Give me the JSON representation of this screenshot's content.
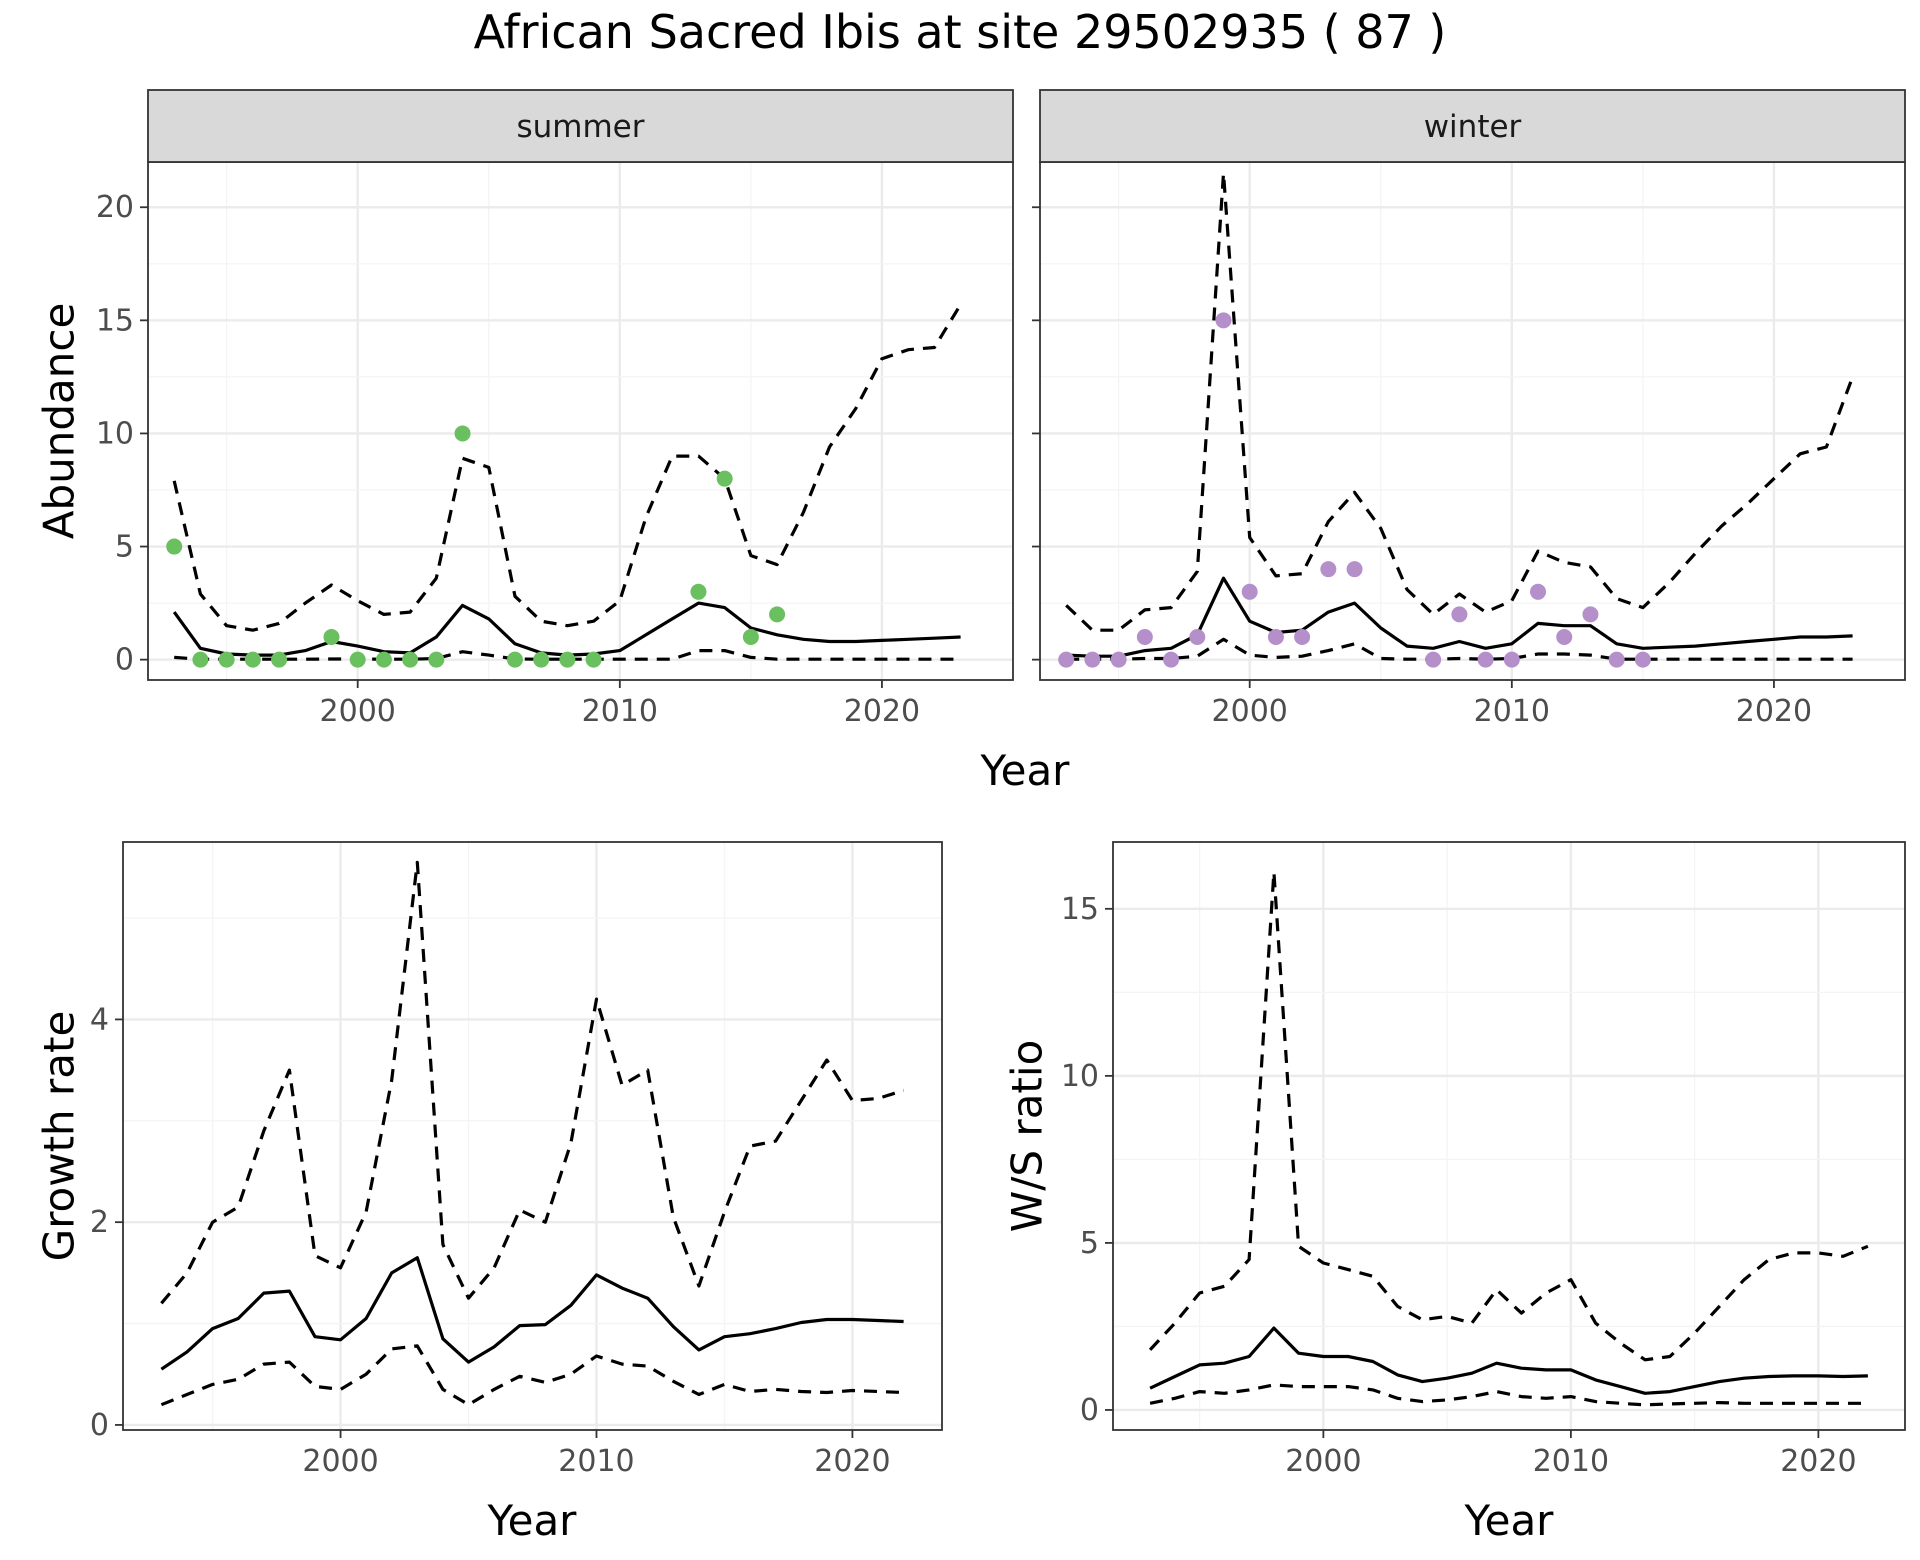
{
  "title": "African Sacred Ibis at site 29502935 ( 87 )",
  "colors": {
    "summer_points": "#6abf5e",
    "winter_points": "#b48fc9"
  },
  "chart_data": [
    {
      "id": "summer",
      "type": "line",
      "panel_label": "summer",
      "ylabel": "Abundance",
      "xlim": [
        1992,
        2025
      ],
      "ylim": [
        -0.9,
        22
      ],
      "xticks": [
        2000,
        2010,
        2020
      ],
      "yticks": [
        0,
        5,
        10,
        15,
        20
      ],
      "x_mean": [
        1993,
        1994,
        1995,
        1996,
        1997,
        1998,
        1999,
        2000,
        2001,
        2002,
        2003,
        2004,
        2005,
        2006,
        2007,
        2008,
        2009,
        2010,
        2011,
        2012,
        2013,
        2014,
        2015,
        2016,
        2017,
        2018,
        2019,
        2020,
        2021,
        2022,
        2023
      ],
      "mean": [
        2.1,
        0.5,
        0.25,
        0.2,
        0.2,
        0.4,
        0.8,
        0.6,
        0.35,
        0.3,
        1.0,
        2.4,
        1.8,
        0.7,
        0.3,
        0.2,
        0.25,
        0.4,
        1.1,
        1.8,
        2.5,
        2.3,
        1.4,
        1.1,
        0.9,
        0.8,
        0.8,
        0.85,
        0.9,
        0.95,
        1.0
      ],
      "upper": [
        7.9,
        2.9,
        1.5,
        1.3,
        1.6,
        2.5,
        3.3,
        2.6,
        2.0,
        2.1,
        3.6,
        8.9,
        8.5,
        2.8,
        1.7,
        1.5,
        1.7,
        2.6,
        6.3,
        9.0,
        9.0,
        8.0,
        4.6,
        4.2,
        6.5,
        9.4,
        11.1,
        13.3,
        13.7,
        13.8,
        15.7
      ],
      "lower": [
        0.1,
        0.02,
        0.02,
        0.02,
        0.02,
        0.02,
        0.03,
        0.03,
        0.02,
        0.02,
        0.05,
        0.35,
        0.2,
        0.03,
        0.02,
        0.02,
        0.02,
        0.02,
        0.02,
        0.02,
        0.4,
        0.4,
        0.1,
        0.02,
        0.02,
        0.02,
        0.02,
        0.02,
        0.02,
        0.02,
        0.02
      ],
      "obs_x": [
        1993,
        1994,
        1995,
        1996,
        1997,
        1999,
        2000,
        2001,
        2002,
        2003,
        2004,
        2006,
        2007,
        2008,
        2009,
        2013,
        2014,
        2015,
        2016
      ],
      "obs_y": [
        5,
        0,
        0,
        0,
        0,
        1,
        0,
        0,
        0,
        0,
        10,
        0,
        0,
        0,
        0,
        3,
        8,
        1,
        2
      ],
      "point_color": "#6abf5e",
      "shared_xlabel": "Year"
    },
    {
      "id": "winter",
      "type": "line",
      "panel_label": "winter",
      "ylabel": "",
      "xlim": [
        1992,
        2025
      ],
      "ylim": [
        -0.9,
        22
      ],
      "xticks": [
        2000,
        2010,
        2020
      ],
      "yticks": [
        0,
        5,
        10,
        15,
        20
      ],
      "x_mean": [
        1993,
        1994,
        1995,
        1996,
        1997,
        1998,
        1999,
        2000,
        2001,
        2002,
        2003,
        2004,
        2005,
        2006,
        2007,
        2008,
        2009,
        2010,
        2011,
        2012,
        2013,
        2014,
        2015,
        2016,
        2017,
        2018,
        2019,
        2020,
        2021,
        2022,
        2023
      ],
      "mean": [
        0.2,
        0.15,
        0.15,
        0.4,
        0.5,
        1.1,
        3.6,
        1.7,
        1.2,
        1.3,
        2.1,
        2.5,
        1.4,
        0.6,
        0.5,
        0.8,
        0.5,
        0.7,
        1.6,
        1.5,
        1.5,
        0.7,
        0.5,
        0.55,
        0.6,
        0.7,
        0.8,
        0.9,
        1.0,
        1.0,
        1.05
      ],
      "upper": [
        2.4,
        1.3,
        1.3,
        2.2,
        2.3,
        3.9,
        21.5,
        5.4,
        3.7,
        3.8,
        6.1,
        7.4,
        5.8,
        3.1,
        2.0,
        2.9,
        2.1,
        2.6,
        4.8,
        4.3,
        4.1,
        2.7,
        2.3,
        3.4,
        4.7,
        5.9,
        6.9,
        8.0,
        9.1,
        9.4,
        12.5
      ],
      "lower": [
        0.02,
        0.02,
        0.02,
        0.05,
        0.05,
        0.15,
        0.9,
        0.2,
        0.1,
        0.15,
        0.4,
        0.7,
        0.05,
        0.02,
        0.02,
        0.05,
        0.02,
        0.05,
        0.25,
        0.25,
        0.2,
        0.02,
        0.02,
        0.02,
        0.02,
        0.02,
        0.02,
        0.02,
        0.02,
        0.02,
        0.02
      ],
      "obs_x": [
        1993,
        1994,
        1995,
        1996,
        1997,
        1998,
        1999,
        2000,
        2001,
        2002,
        2003,
        2004,
        2007,
        2008,
        2009,
        2010,
        2011,
        2012,
        2013,
        2014,
        2015
      ],
      "obs_y": [
        0,
        0,
        0,
        1,
        0,
        1,
        15,
        3,
        1,
        1,
        4,
        4,
        0,
        2,
        0,
        0,
        3,
        1,
        2,
        0,
        0
      ],
      "point_color": "#b48fc9",
      "shared_xlabel": "Year"
    },
    {
      "id": "growth",
      "type": "line",
      "panel_label": "",
      "xlabel": "Year",
      "ylabel": "Growth rate",
      "xlim": [
        1991.5,
        2023.5
      ],
      "ylim": [
        -0.05,
        5.75
      ],
      "xticks": [
        2000,
        2010,
        2020
      ],
      "yticks": [
        0,
        2,
        4
      ],
      "x_mean": [
        1993,
        1994,
        1995,
        1996,
        1997,
        1998,
        1999,
        2000,
        2001,
        2002,
        2003,
        2004,
        2005,
        2006,
        2007,
        2008,
        2009,
        2010,
        2011,
        2012,
        2013,
        2014,
        2015,
        2016,
        2017,
        2018,
        2019,
        2020,
        2021,
        2022
      ],
      "mean": [
        0.55,
        0.72,
        0.95,
        1.05,
        1.3,
        1.32,
        0.87,
        0.84,
        1.05,
        1.5,
        1.65,
        0.85,
        0.62,
        0.77,
        0.98,
        0.99,
        1.18,
        1.48,
        1.35,
        1.25,
        0.97,
        0.74,
        0.87,
        0.9,
        0.95,
        1.01,
        1.04,
        1.04,
        1.03,
        1.02
      ],
      "upper": [
        1.2,
        1.5,
        2.0,
        2.15,
        2.9,
        3.5,
        1.67,
        1.55,
        2.1,
        3.4,
        5.55,
        1.78,
        1.25,
        1.55,
        2.12,
        2.0,
        2.78,
        4.2,
        3.35,
        3.5,
        2.05,
        1.37,
        2.1,
        2.75,
        2.8,
        3.2,
        3.6,
        3.2,
        3.22,
        3.3
      ],
      "lower": [
        0.2,
        0.3,
        0.4,
        0.45,
        0.6,
        0.62,
        0.38,
        0.35,
        0.5,
        0.75,
        0.78,
        0.35,
        0.2,
        0.35,
        0.48,
        0.42,
        0.5,
        0.68,
        0.6,
        0.58,
        0.43,
        0.3,
        0.4,
        0.33,
        0.35,
        0.33,
        0.32,
        0.34,
        0.33,
        0.32
      ]
    },
    {
      "id": "ws",
      "type": "line",
      "panel_label": "",
      "xlabel": "Year",
      "ylabel": "W/S ratio",
      "xlim": [
        1991.5,
        2023.5
      ],
      "ylim": [
        -0.6,
        17
      ],
      "xticks": [
        2000,
        2010,
        2020
      ],
      "yticks": [
        0,
        5,
        10,
        15
      ],
      "x_mean": [
        1993,
        1994,
        1995,
        1996,
        1997,
        1998,
        1999,
        2000,
        2001,
        2002,
        2003,
        2004,
        2005,
        2006,
        2007,
        2008,
        2009,
        2010,
        2011,
        2012,
        2013,
        2014,
        2015,
        2016,
        2017,
        2018,
        2019,
        2020,
        2021,
        2022
      ],
      "mean": [
        0.65,
        1.0,
        1.35,
        1.4,
        1.6,
        2.45,
        1.7,
        1.6,
        1.6,
        1.45,
        1.05,
        0.85,
        0.95,
        1.1,
        1.4,
        1.25,
        1.2,
        1.2,
        0.9,
        0.7,
        0.5,
        0.55,
        0.7,
        0.85,
        0.95,
        1.0,
        1.02,
        1.02,
        1.0,
        1.02
      ],
      "upper": [
        1.8,
        2.6,
        3.5,
        3.7,
        4.5,
        16.1,
        4.9,
        4.4,
        4.2,
        4.0,
        3.1,
        2.7,
        2.8,
        2.6,
        3.6,
        2.9,
        3.5,
        3.9,
        2.6,
        2.0,
        1.5,
        1.6,
        2.3,
        3.1,
        3.9,
        4.5,
        4.7,
        4.7,
        4.6,
        4.9
      ],
      "lower": [
        0.2,
        0.35,
        0.55,
        0.5,
        0.6,
        0.75,
        0.7,
        0.7,
        0.7,
        0.6,
        0.35,
        0.25,
        0.3,
        0.4,
        0.55,
        0.4,
        0.35,
        0.4,
        0.25,
        0.2,
        0.15,
        0.18,
        0.2,
        0.22,
        0.2,
        0.2,
        0.2,
        0.2,
        0.2,
        0.2
      ]
    }
  ]
}
